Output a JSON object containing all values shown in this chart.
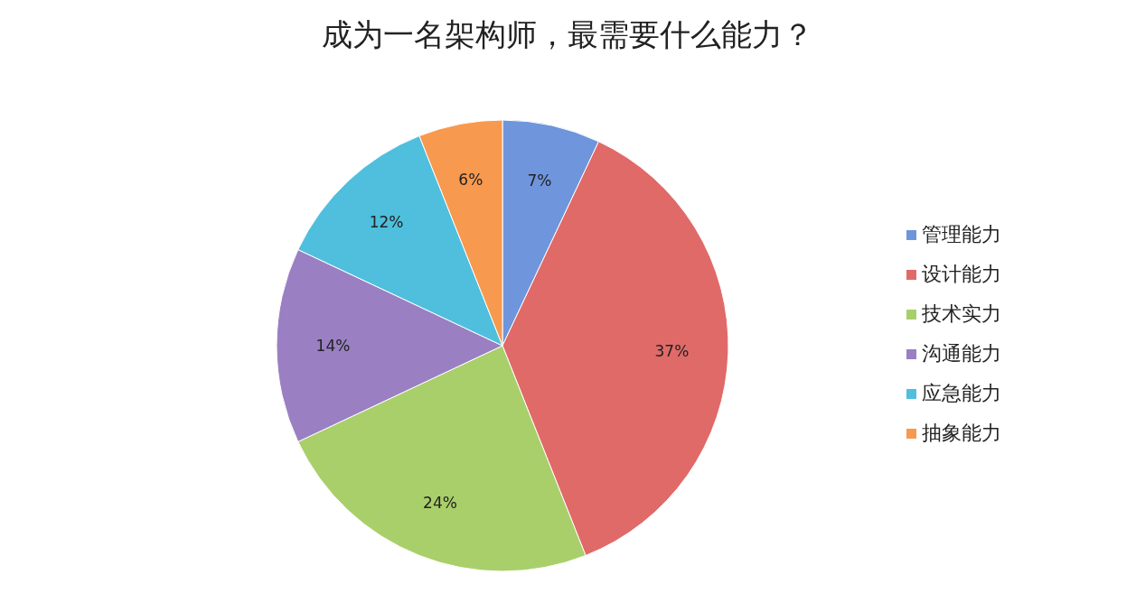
{
  "chart_data": {
    "type": "pie",
    "title": "成为一名架构师，最需要什么能力？",
    "categories": [
      "管理能力",
      "设计能力",
      "技术实力",
      "沟通能力",
      "应急能力",
      "抽象能力"
    ],
    "values": [
      7,
      37,
      24,
      14,
      12,
      6
    ],
    "value_labels": [
      "7%",
      "37%",
      "24%",
      "14%",
      "12%",
      "6%"
    ],
    "colors": [
      "#6f95dc",
      "#e06a68",
      "#a9cf6a",
      "#9a80c2",
      "#4fbfdd",
      "#f7994f"
    ],
    "legend": "right"
  }
}
